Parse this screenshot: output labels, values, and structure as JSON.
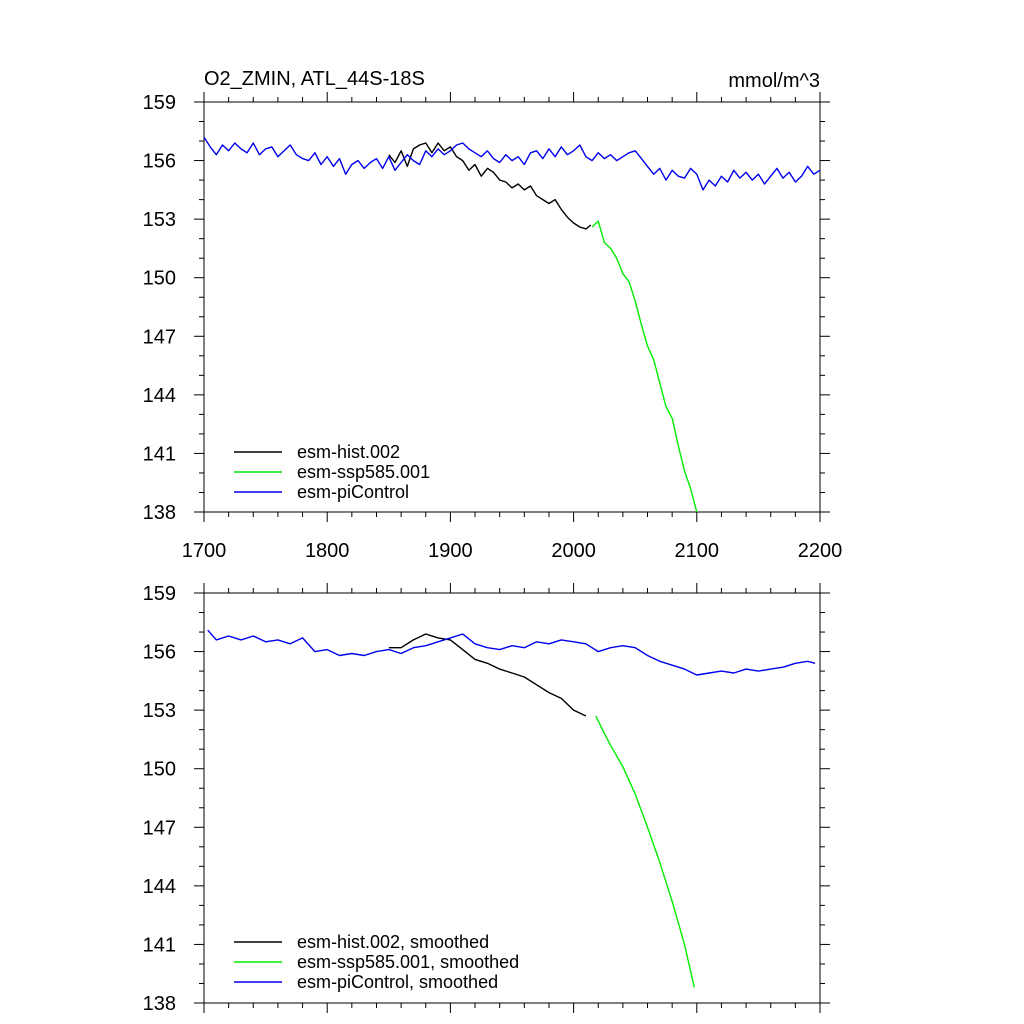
{
  "title_left": "O2_ZMIN, ATL_44S-18S",
  "title_right": "mmol/m^3",
  "chart_data": [
    {
      "type": "line",
      "xlim": [
        1700,
        2200
      ],
      "ylim": [
        138,
        159
      ],
      "x_ticks": [
        "1700",
        "1800",
        "1900",
        "2000",
        "2100",
        "2200"
      ],
      "y_ticks": [
        "138",
        "141",
        "144",
        "147",
        "150",
        "153",
        "156",
        "159"
      ],
      "legend_position": "bottom-left",
      "series": [
        {
          "name": "esm-hist.002",
          "color": "#000000",
          "x": [
            1850,
            1855,
            1860,
            1865,
            1870,
            1875,
            1880,
            1885,
            1890,
            1895,
            1900,
            1905,
            1910,
            1915,
            1920,
            1925,
            1930,
            1935,
            1940,
            1945,
            1950,
            1955,
            1960,
            1965,
            1970,
            1975,
            1980,
            1985,
            1990,
            1995,
            2000,
            2005,
            2010,
            2014
          ],
          "y": [
            156.3,
            155.9,
            156.5,
            155.7,
            156.6,
            156.8,
            156.9,
            156.4,
            156.9,
            156.5,
            156.7,
            156.2,
            156.0,
            155.5,
            155.8,
            155.2,
            155.6,
            155.4,
            155.0,
            154.9,
            154.6,
            154.8,
            154.5,
            154.7,
            154.2,
            154.0,
            153.8,
            154.0,
            153.5,
            153.1,
            152.8,
            152.6,
            152.5,
            152.7
          ]
        },
        {
          "name": "esm-ssp585.001",
          "color": "#00ee00",
          "x": [
            2015,
            2020,
            2025,
            2030,
            2035,
            2040,
            2045,
            2050,
            2055,
            2060,
            2065,
            2070,
            2075,
            2080,
            2085,
            2090,
            2095,
            2100
          ],
          "y": [
            152.6,
            152.9,
            151.8,
            151.5,
            151.0,
            150.2,
            149.8,
            148.8,
            147.6,
            146.5,
            145.8,
            144.6,
            143.4,
            142.8,
            141.4,
            140.1,
            139.2,
            138.0
          ]
        },
        {
          "name": "esm-piControl",
          "color": "#0000ee",
          "x": [
            1700,
            1705,
            1710,
            1715,
            1720,
            1725,
            1730,
            1735,
            1740,
            1745,
            1750,
            1755,
            1760,
            1765,
            1770,
            1775,
            1780,
            1785,
            1790,
            1795,
            1800,
            1805,
            1810,
            1815,
            1820,
            1825,
            1830,
            1835,
            1840,
            1845,
            1850,
            1855,
            1860,
            1865,
            1870,
            1875,
            1880,
            1885,
            1890,
            1895,
            1900,
            1905,
            1910,
            1915,
            1920,
            1925,
            1930,
            1935,
            1940,
            1945,
            1950,
            1955,
            1960,
            1965,
            1970,
            1975,
            1980,
            1985,
            1990,
            1995,
            2000,
            2005,
            2010,
            2015,
            2020,
            2025,
            2030,
            2035,
            2040,
            2045,
            2050,
            2055,
            2060,
            2065,
            2070,
            2075,
            2080,
            2085,
            2090,
            2095,
            2100,
            2105,
            2110,
            2115,
            2120,
            2125,
            2130,
            2135,
            2140,
            2145,
            2150,
            2155,
            2160,
            2165,
            2170,
            2175,
            2180,
            2185,
            2190,
            2195,
            2200
          ],
          "y": [
            157.2,
            156.7,
            156.3,
            156.8,
            156.5,
            156.9,
            156.6,
            156.4,
            156.9,
            156.3,
            156.6,
            156.7,
            156.2,
            156.5,
            156.8,
            156.3,
            156.1,
            156.0,
            156.4,
            155.8,
            156.2,
            155.7,
            156.1,
            155.3,
            155.8,
            156.0,
            155.6,
            155.9,
            156.1,
            155.6,
            156.2,
            155.5,
            155.9,
            156.3,
            156.0,
            155.8,
            156.5,
            156.2,
            156.6,
            156.3,
            156.5,
            156.8,
            156.9,
            156.6,
            156.4,
            156.2,
            156.5,
            156.1,
            155.9,
            156.3,
            156.0,
            156.2,
            155.8,
            156.4,
            156.5,
            156.1,
            156.6,
            156.2,
            156.7,
            156.3,
            156.5,
            156.8,
            156.2,
            156.0,
            156.4,
            156.1,
            156.3,
            156.0,
            156.2,
            156.4,
            156.5,
            156.1,
            155.7,
            155.3,
            155.6,
            155.0,
            155.5,
            155.2,
            155.1,
            155.6,
            155.3,
            154.5,
            155.0,
            154.7,
            155.2,
            154.9,
            155.5,
            155.1,
            155.4,
            155.0,
            155.3,
            154.8,
            155.2,
            155.6,
            155.1,
            155.4,
            154.9,
            155.2,
            155.7,
            155.3,
            155.5
          ]
        }
      ]
    },
    {
      "type": "line",
      "xlim": [
        1700,
        2200
      ],
      "ylim": [
        138,
        159
      ],
      "y_ticks": [
        "138",
        "141",
        "144",
        "147",
        "150",
        "153",
        "156",
        "159"
      ],
      "legend_position": "bottom-left",
      "series": [
        {
          "name": "esm-hist.002, smoothed",
          "color": "#000000",
          "x": [
            1850,
            1860,
            1870,
            1880,
            1890,
            1900,
            1910,
            1920,
            1930,
            1940,
            1950,
            1960,
            1970,
            1980,
            1990,
            2000,
            2010
          ],
          "y": [
            156.2,
            156.2,
            156.6,
            156.9,
            156.7,
            156.6,
            156.1,
            155.6,
            155.4,
            155.1,
            154.9,
            154.7,
            154.3,
            153.9,
            153.6,
            153.0,
            152.7
          ]
        },
        {
          "name": "esm-ssp585.001, smoothed",
          "color": "#00ee00",
          "x": [
            2018,
            2025,
            2030,
            2040,
            2050,
            2060,
            2070,
            2080,
            2090,
            2098
          ],
          "y": [
            152.7,
            151.8,
            151.2,
            150.1,
            148.7,
            147.0,
            145.2,
            143.2,
            141.0,
            138.8
          ]
        },
        {
          "name": "esm-piControl, smoothed",
          "color": "#0000ee",
          "x": [
            1703,
            1710,
            1720,
            1730,
            1740,
            1750,
            1760,
            1770,
            1780,
            1790,
            1800,
            1810,
            1820,
            1830,
            1840,
            1850,
            1860,
            1870,
            1880,
            1890,
            1900,
            1910,
            1920,
            1930,
            1940,
            1950,
            1960,
            1970,
            1980,
            1990,
            2000,
            2010,
            2020,
            2030,
            2040,
            2050,
            2060,
            2070,
            2080,
            2090,
            2100,
            2110,
            2120,
            2130,
            2140,
            2150,
            2160,
            2170,
            2180,
            2190,
            2196
          ],
          "y": [
            157.1,
            156.6,
            156.8,
            156.6,
            156.8,
            156.5,
            156.6,
            156.4,
            156.7,
            156.0,
            156.1,
            155.8,
            155.9,
            155.8,
            156.0,
            156.1,
            155.9,
            156.2,
            156.3,
            156.5,
            156.7,
            156.9,
            156.4,
            156.2,
            156.1,
            156.3,
            156.2,
            156.5,
            156.4,
            156.6,
            156.5,
            156.4,
            156.0,
            156.2,
            156.3,
            156.2,
            155.8,
            155.5,
            155.3,
            155.1,
            154.8,
            154.9,
            155.0,
            154.9,
            155.1,
            155.0,
            155.1,
            155.2,
            155.4,
            155.5,
            155.4
          ]
        }
      ]
    }
  ]
}
